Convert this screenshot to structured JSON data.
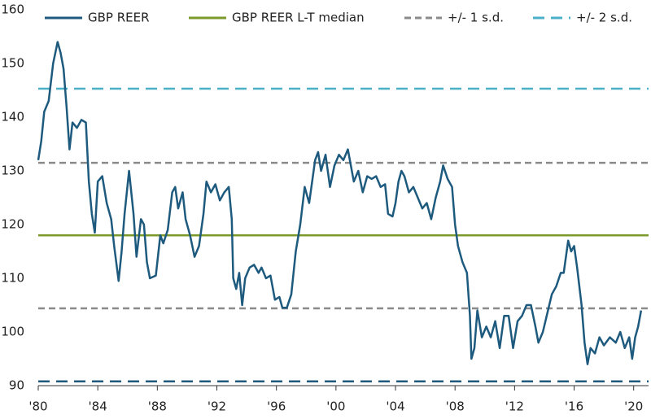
{
  "chart_data": {
    "type": "line",
    "xlim": [
      1980,
      2021
    ],
    "ylim": [
      90,
      160
    ],
    "yticks": [
      90,
      100,
      110,
      120,
      130,
      140,
      150,
      160
    ],
    "xticks": [
      {
        "value": 1980,
        "label": "'80"
      },
      {
        "value": 1984,
        "label": "'84"
      },
      {
        "value": 1988,
        "label": "'88"
      },
      {
        "value": 1992,
        "label": "'92"
      },
      {
        "value": 1996,
        "label": "'96"
      },
      {
        "value": 2000,
        "label": "'00"
      },
      {
        "value": 2004,
        "label": "'04"
      },
      {
        "value": 2008,
        "label": "'08"
      },
      {
        "value": 2012,
        "label": "'12"
      },
      {
        "value": 2016,
        "label": "'16"
      },
      {
        "value": 2020,
        "label": "'20"
      }
    ],
    "x": [
      1980.0,
      1980.2,
      1980.4,
      1980.7,
      1981.0,
      1981.3,
      1981.5,
      1981.7,
      1981.9,
      1982.1,
      1982.3,
      1982.6,
      1982.9,
      1983.2,
      1983.4,
      1983.6,
      1983.8,
      1984.0,
      1984.3,
      1984.6,
      1984.9,
      1985.1,
      1985.4,
      1985.6,
      1985.8,
      1986.1,
      1986.4,
      1986.6,
      1986.9,
      1987.1,
      1987.3,
      1987.5,
      1987.9,
      1988.2,
      1988.4,
      1988.7,
      1989.0,
      1989.2,
      1989.4,
      1989.7,
      1989.9,
      1990.2,
      1990.5,
      1990.8,
      1991.1,
      1991.3,
      1991.6,
      1991.9,
      1992.2,
      1992.5,
      1992.8,
      1993.0,
      1993.1,
      1993.3,
      1993.5,
      1993.7,
      1993.9,
      1994.2,
      1994.5,
      1994.8,
      1995.0,
      1995.3,
      1995.6,
      1995.9,
      1996.2,
      1996.4,
      1996.7,
      1997.0,
      1997.3,
      1997.6,
      1997.9,
      1998.2,
      1998.4,
      1998.6,
      1998.8,
      1999.0,
      1999.3,
      1999.6,
      1999.9,
      2000.2,
      2000.5,
      2000.8,
      2001.0,
      2001.2,
      2001.5,
      2001.8,
      2002.1,
      2002.4,
      2002.7,
      2003.0,
      2003.3,
      2003.5,
      2003.8,
      2004.0,
      2004.2,
      2004.4,
      2004.6,
      2004.9,
      2005.2,
      2005.5,
      2005.8,
      2006.1,
      2006.4,
      2006.7,
      2007.0,
      2007.2,
      2007.5,
      2007.8,
      2008.0,
      2008.2,
      2008.5,
      2008.8,
      2009.0,
      2009.1,
      2009.3,
      2009.5,
      2009.8,
      2010.1,
      2010.4,
      2010.7,
      2011.0,
      2011.3,
      2011.6,
      2011.9,
      2012.2,
      2012.5,
      2012.8,
      2013.1,
      2013.4,
      2013.6,
      2013.9,
      2014.2,
      2014.5,
      2014.8,
      2015.1,
      2015.3,
      2015.6,
      2015.8,
      2016.0,
      2016.2,
      2016.5,
      2016.7,
      2016.9,
      2017.1,
      2017.4,
      2017.7,
      2018.0,
      2018.4,
      2018.8,
      2019.1,
      2019.4,
      2019.7,
      2019.9,
      2020.1,
      2020.3,
      2020.5
    ],
    "series": [
      {
        "name": "GBP REER",
        "color": "#1d5a7e",
        "values": [
          132,
          135.5,
          141,
          143,
          150,
          154,
          152,
          149,
          142,
          134,
          139,
          138,
          139.5,
          139,
          128,
          122,
          118.5,
          128,
          129,
          124,
          121,
          116,
          109.5,
          115,
          122,
          130,
          122,
          114,
          121,
          120,
          113,
          110,
          110.5,
          118,
          116.5,
          119,
          126,
          127,
          123,
          126,
          121,
          118,
          114,
          116,
          122,
          128,
          126,
          127.5,
          124.5,
          126,
          127,
          121,
          110,
          108,
          111,
          105,
          110,
          112,
          112.5,
          111,
          112,
          110,
          110.5,
          106,
          106.5,
          104.5,
          104.5,
          107,
          115,
          120,
          127,
          124,
          128,
          132,
          133.5,
          130,
          133,
          127,
          131,
          133,
          132,
          134,
          131,
          128,
          130,
          126,
          129,
          128.5,
          129,
          127,
          127.5,
          122,
          121.5,
          124,
          128,
          130,
          129,
          126,
          127,
          125,
          123,
          124,
          121,
          125,
          128,
          131,
          128.5,
          127,
          120,
          116,
          113,
          111,
          103,
          95,
          97,
          104,
          99,
          101,
          99,
          102,
          97,
          103,
          103,
          97,
          102,
          103,
          105,
          105,
          101,
          98,
          100,
          103.5,
          107,
          108.5,
          111,
          111,
          117,
          115,
          116,
          112,
          105,
          98,
          94,
          97,
          96,
          99,
          97.5,
          99,
          98,
          100,
          97,
          99,
          95,
          99,
          101,
          104
        ]
      }
    ],
    "reference_lines": [
      {
        "name": "GBP REER L-T median",
        "color": "#7b9a2b",
        "dash": "none",
        "values": [
          118
        ]
      },
      {
        "name": "+/- 1 s.d.",
        "color": "#8a8a8a",
        "dash": "8 5",
        "values": [
          131.5,
          104.4
        ]
      },
      {
        "name": "+/- 2 s.d.",
        "color": "#4bafc8",
        "line_colors": [
          "#4bafc8",
          "#1d5a7e"
        ],
        "dash": "14 8",
        "values": [
          145.3,
          90.8
        ]
      }
    ]
  }
}
